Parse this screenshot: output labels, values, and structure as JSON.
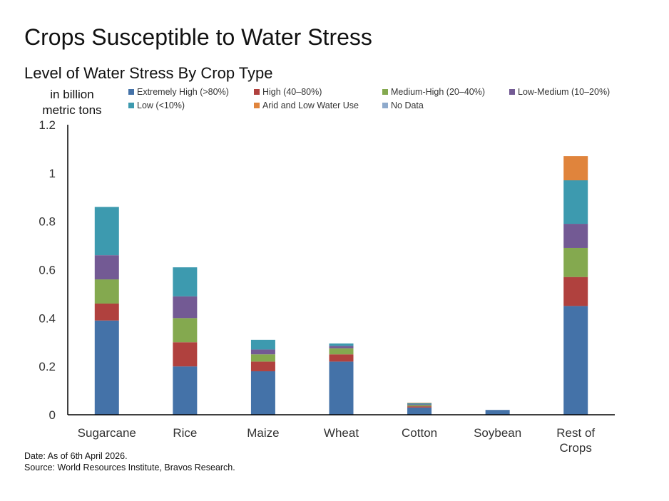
{
  "title": "Crops Susceptible to Water Stress",
  "subtitle": "Level of Water Stress By Crop Type",
  "unit_label": "in billion\nmetric tons",
  "footer": {
    "date": "Date: As of 6th April 2026.",
    "source": "Source: World Resources Institute, Bravos Research."
  },
  "chart_data": {
    "type": "bar",
    "stacked": true,
    "categories": [
      "Sugarcane",
      "Rice",
      "Maize",
      "Wheat",
      "Cotton",
      "Soybean",
      "Rest of\nCrops"
    ],
    "ylim": [
      0,
      1.2
    ],
    "yticks": [
      {
        "value": 0,
        "label": "0"
      },
      {
        "value": 0.2,
        "label": "0.2"
      },
      {
        "value": 0.4,
        "label": "0.4"
      },
      {
        "value": 0.6,
        "label": "0.6"
      },
      {
        "value": 0.8,
        "label": "0.8"
      },
      {
        "value": 1.0,
        "label": "1"
      },
      {
        "value": 1.2,
        "label": "1.2"
      }
    ],
    "ylabel": "in billion metric tons",
    "grid": false,
    "legend_position": "top",
    "series": [
      {
        "name": "Extremely High (>80%)",
        "color": "#4472a8",
        "values": [
          0.39,
          0.2,
          0.18,
          0.22,
          0.03,
          0.02,
          0.45
        ]
      },
      {
        "name": "High (40–80%)",
        "color": "#b0413e",
        "values": [
          0.07,
          0.1,
          0.04,
          0.03,
          0.005,
          0.0,
          0.12
        ]
      },
      {
        "name": "Medium-High (20–40%)",
        "color": "#84a94f",
        "values": [
          0.1,
          0.1,
          0.03,
          0.025,
          0.005,
          0.0,
          0.12
        ]
      },
      {
        "name": "Low-Medium (10–20%)",
        "color": "#735a94",
        "values": [
          0.1,
          0.09,
          0.02,
          0.01,
          0.003,
          0.0,
          0.1
        ]
      },
      {
        "name": "Low (<10%)",
        "color": "#3d9aaf",
        "values": [
          0.2,
          0.12,
          0.04,
          0.01,
          0.005,
          0.0,
          0.18
        ]
      },
      {
        "name": "Arid and Low Water Use",
        "color": "#e0843c",
        "values": [
          0.0,
          0.0,
          0.0,
          0.0,
          0.002,
          0.0,
          0.1
        ]
      },
      {
        "name": "No Data",
        "color": "#8eaacc",
        "values": [
          0.0,
          0.0,
          0.0,
          0.0,
          0.0,
          0.0,
          0.0
        ]
      }
    ]
  }
}
